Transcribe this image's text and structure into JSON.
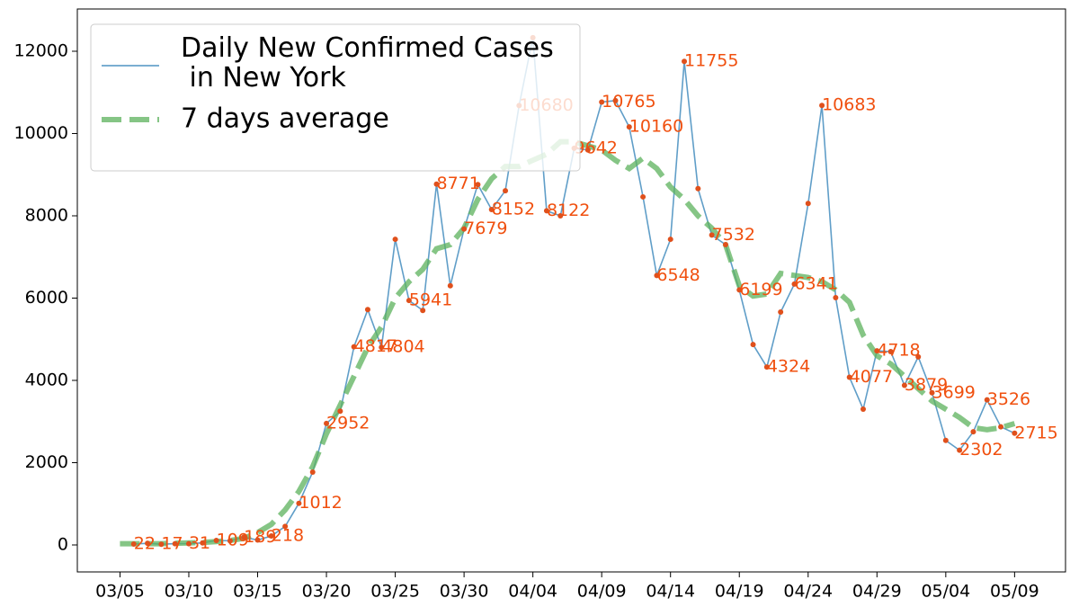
{
  "chart_data": {
    "type": "line",
    "categories": [
      "03/05",
      null,
      null,
      null,
      null,
      "03/10",
      null,
      null,
      null,
      null,
      "03/15",
      null,
      null,
      null,
      null,
      "03/20",
      null,
      null,
      null,
      null,
      "03/25",
      null,
      null,
      null,
      null,
      "03/30",
      null,
      null,
      null,
      null,
      "04/04",
      null,
      null,
      null,
      null,
      "04/09",
      null,
      null,
      null,
      null,
      "04/14",
      null,
      null,
      null,
      null,
      "04/19",
      null,
      null,
      null,
      null,
      "04/24",
      null,
      null,
      null,
      null,
      "04/29",
      null,
      null,
      null,
      null,
      "05/04",
      null,
      null,
      null,
      null,
      "05/09"
    ],
    "series": [
      {
        "name": "Daily New Confirmed Cases\n in New York",
        "color": "#4f93c2",
        "marker_color": "#e0501c",
        "label_color": "#f0500f",
        "values": [
          null,
          22,
          40,
          17,
          30,
          31,
          50,
          109,
          100,
          189,
          120,
          218,
          450,
          1012,
          1770,
          2952,
          3250,
          4817,
          5720,
          4804,
          7430,
          5941,
          5700,
          8771,
          6300,
          7679,
          8760,
          8152,
          8610,
          10680,
          12330,
          8122,
          8000,
          9642,
          9600,
          10765,
          10800,
          10160,
          8460,
          6548,
          7430,
          11755,
          8660,
          7532,
          7300,
          6199,
          4870,
          4324,
          5660,
          6341,
          8300,
          10683,
          6010,
          4077,
          3300,
          4718,
          4700,
          3879,
          4570,
          3699,
          2540,
          2302,
          2750,
          3526,
          2870,
          2715
        ]
      },
      {
        "name": "7 days average",
        "color": "#5cb25c",
        "values": [
          30,
          30,
          30,
          30,
          40,
          50,
          60,
          80,
          110,
          160,
          300,
          500,
          850,
          1300,
          1900,
          2700,
          3400,
          4100,
          4800,
          5300,
          6000,
          6400,
          6700,
          7200,
          7300,
          7700,
          8400,
          8900,
          9200,
          9200,
          9350,
          9500,
          9800,
          9800,
          9700,
          9600,
          9350,
          9150,
          9400,
          9150,
          8700,
          8400,
          8000,
          7700,
          7300,
          6300,
          6050,
          6100,
          6600,
          6550,
          6500,
          6400,
          6200,
          5900,
          5100,
          4600,
          4400,
          4100,
          3800,
          3500,
          3300,
          3100,
          2850,
          2800,
          2850,
          2950
        ]
      }
    ],
    "xlim": [
      -3.1,
      68.7
    ],
    "ylim": [
      -656,
      13027
    ],
    "yticks": [
      0,
      2000,
      4000,
      6000,
      8000,
      10000,
      12000
    ],
    "legend": "upper left"
  }
}
